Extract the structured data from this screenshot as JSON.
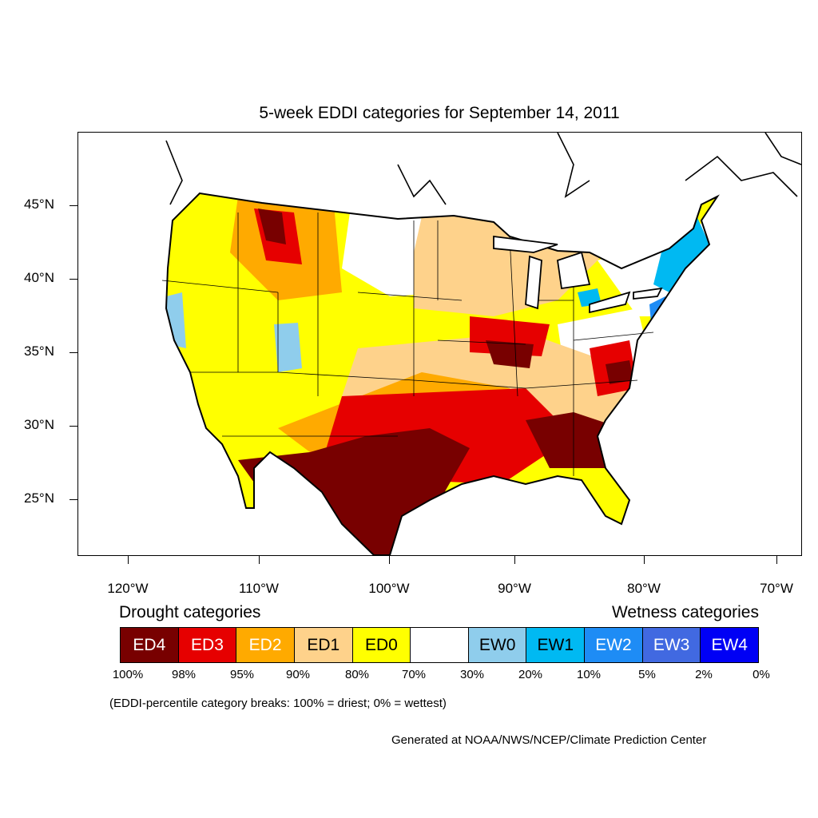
{
  "title": "5-week EDDI categories for September 14, 2011",
  "map": {
    "region": "CONUS",
    "lat_range": [
      21,
      49.5
    ],
    "lon_range": [
      -124,
      -68.5
    ],
    "latitude_labels": [
      "45°N",
      "40°N",
      "35°N",
      "30°N",
      "25°N"
    ],
    "longitude_labels": [
      "120°W",
      "110°W",
      "100°W",
      "90°W",
      "80°W",
      "70°W"
    ],
    "colors": {
      "ED4": "#780000",
      "ED3": "#e60000",
      "ED2": "#ffaa00",
      "ED1": "#fed28b",
      "ED0": "#ffff00",
      "neutral": "#ffffff",
      "EW0": "#8fcdec",
      "EW1": "#00b9f2",
      "EW2": "#1e8cf5",
      "EW3": "#4169e1",
      "EW4": "#0000f5"
    }
  },
  "legend": {
    "drought_heading": "Drought categories",
    "wetness_heading": "Wetness categories",
    "categories": [
      {
        "label": "ED4",
        "color": "#780000",
        "text_color": "#ffffff"
      },
      {
        "label": "ED3",
        "color": "#e60000",
        "text_color": "#ffffff"
      },
      {
        "label": "ED2",
        "color": "#ffaa00",
        "text_color": "#ffffff"
      },
      {
        "label": "ED1",
        "color": "#fed28b",
        "text_color": "#000000"
      },
      {
        "label": "ED0",
        "color": "#ffff00",
        "text_color": "#000000"
      },
      {
        "label": "",
        "color": "#ffffff",
        "text_color": "#000000"
      },
      {
        "label": "EW0",
        "color": "#8fcdec",
        "text_color": "#000000"
      },
      {
        "label": "EW1",
        "color": "#00b9f2",
        "text_color": "#000000"
      },
      {
        "label": "EW2",
        "color": "#1e8cf5",
        "text_color": "#ffffff"
      },
      {
        "label": "EW3",
        "color": "#4169e1",
        "text_color": "#ffffff"
      },
      {
        "label": "EW4",
        "color": "#0000f5",
        "text_color": "#ffffff"
      }
    ],
    "percentiles": [
      "100%",
      "98%",
      "95%",
      "90%",
      "80%",
      "70%",
      "30%",
      "20%",
      "10%",
      "5%",
      "2%",
      "0%"
    ],
    "note": "(EDDI-percentile category breaks: 100% = driest; 0% = wettest)"
  },
  "credit": "Generated at NOAA/NWS/NCEP/Climate Prediction Center"
}
